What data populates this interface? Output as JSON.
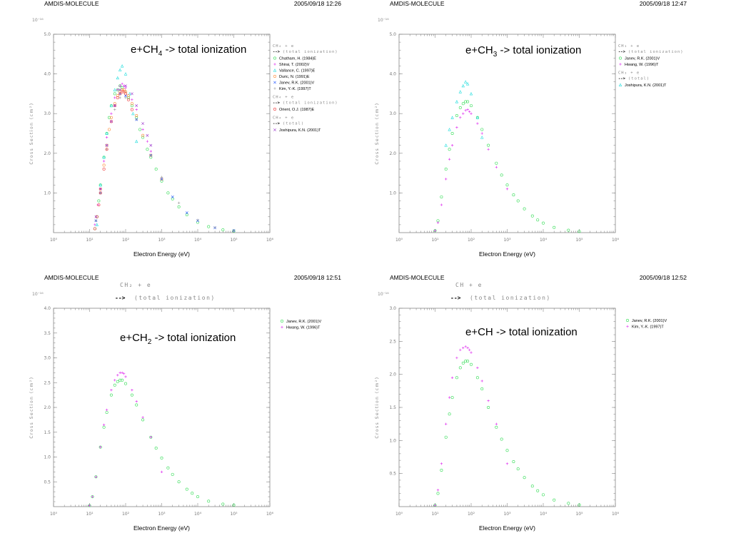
{
  "colors": {
    "green": "#33dd55",
    "magenta": "#dd22ee",
    "blue": "#2255ff",
    "cyan": "#22dddd",
    "orange": "#ff8833",
    "purple": "#9933cc",
    "red": "#ee3333",
    "olive": "#aa9944",
    "gray": "#999999"
  },
  "chart_data": [
    {
      "type": "scatter",
      "header_left": "AMDIS-MOLECULE",
      "header_right": "2005/09/18 12:26",
      "title_main": "e+CH",
      "title_sub": "4",
      "title_rest": " -> total ionization",
      "xlabel": "Electron Energy (eV)",
      "ylabel": "Cross Section (cm²)",
      "y_exponent": "10⁻¹⁶",
      "xscale": "log",
      "xlim": [
        1,
        1000000
      ],
      "ylim": [
        0,
        5.0
      ],
      "xticks": [
        "10⁰",
        "10¹",
        "10²",
        "10³",
        "10⁴",
        "10⁵",
        "10⁶"
      ],
      "yticks": [
        "1.0",
        "2.0",
        "3.0",
        "4.0",
        "5.0"
      ],
      "legend_groups": [
        {
          "head": "CH₄ + e",
          "arrow": "-->",
          "process": "(total ionization)",
          "entries": [
            {
              "name": "Chatham, H. (1984)E",
              "color": "green",
              "marker": "circle"
            },
            {
              "name": "Shirai, T. (2002)V",
              "color": "magenta",
              "marker": "plus"
            },
            {
              "name": "Vallance, C. (1997)E",
              "color": "cyan",
              "marker": "triangle"
            },
            {
              "name": "Duric, N. (1991)E",
              "color": "orange",
              "marker": "circle"
            },
            {
              "name": "Janev, R.K. (2001)V",
              "color": "blue",
              "marker": "cross"
            },
            {
              "name": "Kim, Y.-K. (1997)T",
              "color": "gray",
              "marker": "plus"
            }
          ]
        },
        {
          "head": "CH₄ + e",
          "arrow": "-->",
          "process": "(total ionization)",
          "entries": [
            {
              "name": "Orient, O.J. (1987)E",
              "color": "red",
              "marker": "circle"
            }
          ]
        },
        {
          "head": "CH₄ + e",
          "arrow": "-->",
          "process": "(total)",
          "entries": [
            {
              "name": "Joshipura, K.N. (2001)T",
              "color": "purple",
              "marker": "cross"
            }
          ]
        }
      ],
      "series": [
        {
          "color": "green",
          "marker": "circle",
          "x": [
            14,
            16,
            18,
            20,
            25,
            30,
            35,
            40,
            50,
            60,
            70,
            80,
            100,
            120,
            150,
            200,
            250,
            300,
            400,
            500,
            700,
            1000,
            1500,
            2000,
            3000,
            5000,
            10000,
            20000,
            50000,
            100000
          ],
          "y": [
            0.1,
            0.4,
            0.8,
            1.2,
            1.9,
            2.5,
            2.9,
            3.2,
            3.5,
            3.6,
            3.7,
            3.65,
            3.55,
            3.4,
            3.2,
            2.9,
            2.6,
            2.4,
            2.1,
            1.9,
            1.6,
            1.3,
            1.0,
            0.85,
            0.65,
            0.45,
            0.26,
            0.15,
            0.07,
            0.04
          ]
        },
        {
          "color": "magenta",
          "marker": "plus",
          "x": [
            14,
            17,
            20,
            25,
            30,
            40,
            50,
            60,
            70,
            80,
            90,
            100,
            150,
            200,
            300,
            400,
            500
          ],
          "y": [
            0.2,
            0.7,
            1.1,
            1.8,
            2.4,
            3.0,
            3.4,
            3.6,
            3.7,
            3.75,
            3.7,
            3.65,
            3.35,
            3.1,
            2.6,
            2.3,
            2.05
          ]
        },
        {
          "color": "cyan",
          "marker": "triangle",
          "x": [
            16,
            20,
            25,
            30,
            40,
            50,
            60,
            70,
            80,
            100,
            130,
            160,
            200
          ],
          "y": [
            0.2,
            1.2,
            1.9,
            2.5,
            3.2,
            3.6,
            3.9,
            4.1,
            4.2,
            4.0,
            3.5,
            3.0,
            2.3
          ]
        },
        {
          "color": "orange",
          "marker": "circle",
          "x": [
            20,
            25,
            30,
            35,
            40,
            50,
            60,
            70,
            80,
            90,
            100,
            120,
            150,
            200,
            300,
            500,
            1000
          ],
          "y": [
            1.1,
            1.7,
            2.2,
            2.6,
            2.9,
            3.25,
            3.45,
            3.55,
            3.6,
            3.6,
            3.55,
            3.45,
            3.25,
            2.95,
            2.45,
            1.95,
            1.35
          ]
        },
        {
          "color": "blue",
          "marker": "cross",
          "x": [
            15,
            20,
            30,
            50,
            70,
            100,
            200,
            500,
            1000,
            2000,
            5000,
            10000,
            30000,
            100000
          ],
          "y": [
            0.3,
            1.0,
            2.2,
            3.2,
            3.5,
            3.45,
            2.85,
            1.95,
            1.35,
            0.9,
            0.5,
            0.3,
            0.12,
            0.05
          ]
        },
        {
          "color": "gray",
          "marker": "plus",
          "x": [
            15,
            20,
            30,
            50,
            70,
            100,
            200,
            500,
            1000,
            3000,
            10000,
            30000,
            100000
          ],
          "y": [
            0.3,
            1.0,
            2.1,
            3.1,
            3.4,
            3.4,
            2.85,
            1.95,
            1.4,
            0.75,
            0.32,
            0.13,
            0.05
          ]
        },
        {
          "color": "red",
          "marker": "circle",
          "x": [
            14,
            16,
            18,
            20,
            25,
            30,
            40,
            50,
            60,
            70,
            80,
            90,
            100,
            120,
            150
          ],
          "y": [
            0.1,
            0.4,
            0.7,
            1.0,
            1.6,
            2.1,
            2.8,
            3.2,
            3.4,
            3.5,
            3.55,
            3.55,
            3.5,
            3.35,
            3.1
          ]
        },
        {
          "color": "purple",
          "marker": "cross",
          "x": [
            15,
            20,
            30,
            40,
            50,
            70,
            100,
            150,
            200,
            300,
            400,
            500
          ],
          "y": [
            0.4,
            1.1,
            2.2,
            2.8,
            3.2,
            3.6,
            3.7,
            3.5,
            3.2,
            2.75,
            2.45,
            2.2
          ]
        }
      ]
    },
    {
      "type": "scatter",
      "header_left": "AMDIS-MOLECULE",
      "header_right": "2005/09/18 12:47",
      "title_main": "e+CH",
      "title_sub": "3",
      "title_rest": " -> total ionization",
      "xlabel": "Electron Energy (eV)",
      "ylabel": "Cross Section (cm²)",
      "y_exponent": "10⁻¹⁶",
      "xscale": "log",
      "xlim": [
        1,
        1000000
      ],
      "ylim": [
        0,
        5.0
      ],
      "xticks": [
        "10⁰",
        "10¹",
        "10²",
        "10³",
        "10⁴",
        "10⁵",
        "10⁶"
      ],
      "yticks": [
        "1.0",
        "2.0",
        "3.0",
        "4.0",
        "5.0"
      ],
      "legend_groups": [
        {
          "head": "CH₃ + e",
          "arrow": "-->",
          "process": "(total ionization)",
          "entries": [
            {
              "name": "Janev, R.K. (2001)V",
              "color": "green",
              "marker": "circle"
            },
            {
              "name": "Hwang, W. (1996)T",
              "color": "magenta",
              "marker": "plus"
            }
          ]
        },
        {
          "head": "CH₃ + e",
          "arrow": "-->",
          "process": "(total)",
          "entries": [
            {
              "name": "Joshipura, K.N. (2001)T",
              "color": "cyan",
              "marker": "triangle"
            }
          ]
        }
      ],
      "series": [
        {
          "color": "green",
          "marker": "circle",
          "x": [
            10,
            12,
            15,
            20,
            25,
            30,
            40,
            50,
            60,
            70,
            80,
            100,
            150,
            200,
            300,
            500,
            700,
            1000,
            1500,
            2000,
            3000,
            5000,
            7000,
            10000,
            20000,
            50000,
            100000
          ],
          "y": [
            0.05,
            0.3,
            0.9,
            1.6,
            2.1,
            2.5,
            2.95,
            3.15,
            3.25,
            3.3,
            3.3,
            3.2,
            2.9,
            2.6,
            2.2,
            1.75,
            1.45,
            1.2,
            0.95,
            0.8,
            0.6,
            0.42,
            0.32,
            0.24,
            0.13,
            0.06,
            0.03
          ]
        },
        {
          "color": "magenta",
          "marker": "plus",
          "x": [
            10,
            12,
            15,
            20,
            25,
            30,
            40,
            50,
            60,
            70,
            80,
            90,
            100,
            150,
            200,
            300,
            500,
            1000
          ],
          "y": [
            0.05,
            0.25,
            0.7,
            1.35,
            1.85,
            2.2,
            2.65,
            2.9,
            3.0,
            3.08,
            3.1,
            3.05,
            3.0,
            2.75,
            2.5,
            2.1,
            1.65,
            1.1
          ]
        },
        {
          "color": "cyan",
          "marker": "triangle",
          "x": [
            20,
            25,
            30,
            40,
            50,
            60,
            70,
            80,
            100,
            150,
            200
          ],
          "y": [
            2.2,
            2.6,
            2.9,
            3.3,
            3.55,
            3.7,
            3.8,
            3.75,
            3.5,
            2.9,
            2.4
          ]
        }
      ]
    },
    {
      "type": "scatter",
      "header_left": "AMDIS-MOLECULE",
      "header_right": "2005/09/18 12:51",
      "top_head": "CH₂ + e",
      "top_arrow": "-->",
      "top_process": "(total ionization)",
      "title_main": "e+CH",
      "title_sub": "2",
      "title_rest": " -> total ionization",
      "xlabel": "Electron Energy (eV)",
      "ylabel": "Cross Section (cm²)",
      "y_exponent": "10⁻¹⁶",
      "xscale": "log",
      "xlim": [
        1,
        1000000
      ],
      "ylim": [
        0,
        4.0
      ],
      "xticks": [
        "10⁰",
        "10¹",
        "10²",
        "10³",
        "10⁴",
        "10⁵",
        "10⁶"
      ],
      "yticks": [
        "0.5",
        "1.0",
        "1.5",
        "2.0",
        "2.5",
        "3.0",
        "3.5",
        "4.0"
      ],
      "legend_groups": [
        {
          "entries": [
            {
              "name": "Janev, R.K. (2001)V",
              "color": "green",
              "marker": "circle"
            },
            {
              "name": "Hwang, W. (1996)T",
              "color": "magenta",
              "marker": "plus"
            }
          ]
        }
      ],
      "series": [
        {
          "color": "green",
          "marker": "circle",
          "x": [
            10,
            12,
            15,
            20,
            25,
            30,
            40,
            50,
            60,
            70,
            80,
            100,
            150,
            200,
            300,
            500,
            700,
            1000,
            1500,
            2000,
            3000,
            5000,
            7000,
            10000,
            20000,
            50000,
            100000
          ],
          "y": [
            0.02,
            0.2,
            0.6,
            1.2,
            1.6,
            1.9,
            2.25,
            2.45,
            2.52,
            2.55,
            2.55,
            2.48,
            2.25,
            2.05,
            1.75,
            1.4,
            1.18,
            0.98,
            0.78,
            0.65,
            0.5,
            0.35,
            0.27,
            0.2,
            0.11,
            0.05,
            0.03
          ]
        },
        {
          "color": "magenta",
          "marker": "plus",
          "x": [
            10,
            12,
            15,
            20,
            25,
            30,
            40,
            50,
            60,
            70,
            80,
            90,
            100,
            150,
            200,
            300,
            500,
            1000
          ],
          "y": [
            0.02,
            0.2,
            0.6,
            1.2,
            1.65,
            1.95,
            2.35,
            2.55,
            2.65,
            2.7,
            2.7,
            2.68,
            2.62,
            2.35,
            2.12,
            1.8,
            1.4,
            0.7
          ]
        }
      ]
    },
    {
      "type": "scatter",
      "header_left": "AMDIS-MOLECULE",
      "header_right": "2005/09/18 12:52",
      "top_head": "CH + e",
      "top_arrow": "-->",
      "top_process": "(total ionization)",
      "title_main": "e+CH",
      "title_sub": "",
      "title_rest": " -> total ionization",
      "xlabel": "Electron Energy (eV)",
      "ylabel": "Cross Section (cm²)",
      "y_exponent": "10⁻¹⁶",
      "xscale": "log",
      "xlim": [
        1,
        1000000
      ],
      "ylim": [
        0,
        3.0
      ],
      "xticks": [
        "10⁰",
        "10¹",
        "10²",
        "10³",
        "10⁴",
        "10⁵",
        "10⁶"
      ],
      "yticks": [
        "0.5",
        "1.0",
        "1.5",
        "2.0",
        "2.5",
        "3.0"
      ],
      "legend_groups": [
        {
          "entries": [
            {
              "name": "Janev, R.K. (2001)V",
              "color": "green",
              "marker": "circle"
            },
            {
              "name": "Kim, Y.-K. (1997)T",
              "color": "magenta",
              "marker": "plus"
            }
          ]
        }
      ],
      "series": [
        {
          "color": "green",
          "marker": "circle",
          "x": [
            10,
            12,
            15,
            20,
            25,
            30,
            40,
            50,
            60,
            70,
            80,
            100,
            150,
            200,
            300,
            500,
            700,
            1000,
            1500,
            2000,
            3000,
            5000,
            7000,
            10000,
            20000,
            50000,
            100000
          ],
          "y": [
            0.02,
            0.2,
            0.55,
            1.05,
            1.4,
            1.65,
            1.95,
            2.1,
            2.17,
            2.2,
            2.2,
            2.15,
            1.95,
            1.78,
            1.5,
            1.2,
            1.02,
            0.85,
            0.68,
            0.57,
            0.44,
            0.31,
            0.24,
            0.18,
            0.1,
            0.05,
            0.025
          ]
        },
        {
          "color": "magenta",
          "marker": "plus",
          "x": [
            10,
            12,
            15,
            20,
            25,
            30,
            40,
            50,
            60,
            70,
            80,
            90,
            100,
            150,
            200,
            300,
            500,
            1000
          ],
          "y": [
            0.02,
            0.25,
            0.65,
            1.25,
            1.65,
            1.95,
            2.25,
            2.37,
            2.4,
            2.42,
            2.4,
            2.37,
            2.33,
            2.1,
            1.9,
            1.6,
            1.25,
            0.65
          ]
        }
      ]
    }
  ]
}
